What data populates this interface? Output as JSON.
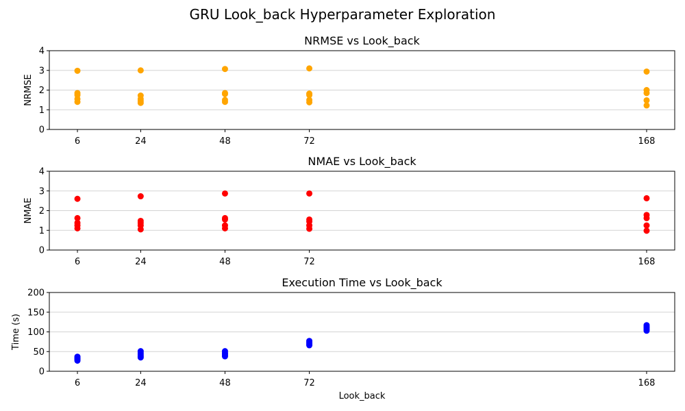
{
  "figure": {
    "suptitle": "GRU Look_back Hyperparameter Exploration"
  },
  "chart_data": [
    {
      "type": "scatter",
      "title": "NRMSE vs Look_back",
      "xlabel": "",
      "ylabel": "NRMSE",
      "x_ticks": [
        6,
        24,
        48,
        72,
        168
      ],
      "y_ticks": [
        0,
        1,
        2,
        3,
        4
      ],
      "xlim": [
        -2,
        176
      ],
      "ylim": [
        0,
        4
      ],
      "grid": "y",
      "color": "#ffa500",
      "points": [
        [
          6,
          2.98
        ],
        [
          6,
          1.85
        ],
        [
          6,
          1.75
        ],
        [
          6,
          1.55
        ],
        [
          6,
          1.4
        ],
        [
          24,
          3.0
        ],
        [
          24,
          1.72
        ],
        [
          24,
          1.55
        ],
        [
          24,
          1.45
        ],
        [
          24,
          1.35
        ],
        [
          48,
          3.07
        ],
        [
          48,
          1.85
        ],
        [
          48,
          1.8
        ],
        [
          48,
          1.5
        ],
        [
          48,
          1.4
        ],
        [
          72,
          3.1
        ],
        [
          72,
          1.82
        ],
        [
          72,
          1.75
        ],
        [
          72,
          1.5
        ],
        [
          72,
          1.38
        ],
        [
          168,
          2.94
        ],
        [
          168,
          2.0
        ],
        [
          168,
          1.85
        ],
        [
          168,
          1.48
        ],
        [
          168,
          1.22
        ]
      ]
    },
    {
      "type": "scatter",
      "title": "NMAE vs Look_back",
      "xlabel": "",
      "ylabel": "NMAE",
      "x_ticks": [
        6,
        24,
        48,
        72,
        168
      ],
      "y_ticks": [
        0,
        1,
        2,
        3,
        4
      ],
      "xlim": [
        -2,
        176
      ],
      "ylim": [
        0,
        4
      ],
      "grid": "y",
      "color": "#ff0000",
      "points": [
        [
          6,
          2.6
        ],
        [
          6,
          1.62
        ],
        [
          6,
          1.38
        ],
        [
          6,
          1.25
        ],
        [
          6,
          1.1
        ],
        [
          24,
          2.73
        ],
        [
          24,
          1.48
        ],
        [
          24,
          1.38
        ],
        [
          24,
          1.25
        ],
        [
          24,
          1.05
        ],
        [
          48,
          2.87
        ],
        [
          48,
          1.62
        ],
        [
          48,
          1.55
        ],
        [
          48,
          1.25
        ],
        [
          48,
          1.1
        ],
        [
          72,
          2.87
        ],
        [
          72,
          1.55
        ],
        [
          72,
          1.45
        ],
        [
          72,
          1.25
        ],
        [
          72,
          1.08
        ],
        [
          168,
          2.63
        ],
        [
          168,
          1.78
        ],
        [
          168,
          1.62
        ],
        [
          168,
          1.25
        ],
        [
          168,
          0.98
        ]
      ]
    },
    {
      "type": "scatter",
      "title": "Execution Time vs Look_back",
      "xlabel": "Look_back",
      "ylabel": "Time (s)",
      "x_ticks": [
        6,
        24,
        48,
        72,
        168
      ],
      "y_ticks": [
        0,
        50,
        100,
        150,
        200
      ],
      "xlim": [
        -2,
        176
      ],
      "ylim": [
        0,
        200
      ],
      "grid": "y",
      "color": "#0000ff",
      "points": [
        [
          6,
          37
        ],
        [
          6,
          35
        ],
        [
          6,
          32
        ],
        [
          6,
          30
        ],
        [
          6,
          27
        ],
        [
          24,
          51
        ],
        [
          24,
          46
        ],
        [
          24,
          42
        ],
        [
          24,
          38
        ],
        [
          24,
          35
        ],
        [
          48,
          51
        ],
        [
          48,
          47
        ],
        [
          48,
          44
        ],
        [
          48,
          41
        ],
        [
          48,
          38
        ],
        [
          72,
          77
        ],
        [
          72,
          74
        ],
        [
          72,
          71
        ],
        [
          72,
          68
        ],
        [
          72,
          66
        ],
        [
          168,
          117
        ],
        [
          168,
          113
        ],
        [
          168,
          110
        ],
        [
          168,
          106
        ],
        [
          168,
          103
        ]
      ]
    }
  ]
}
